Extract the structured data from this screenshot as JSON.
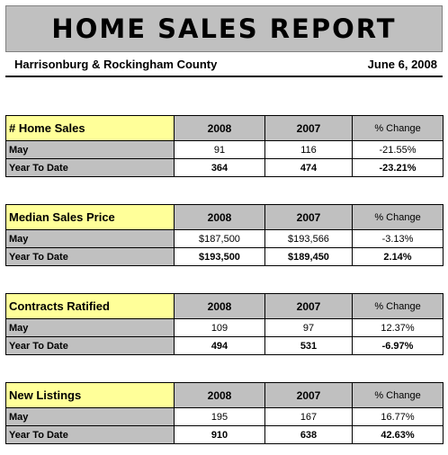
{
  "header": {
    "title": "HOME SALES REPORT",
    "region": "Harrisonburg & Rockingham County",
    "date": "June 6, 2008"
  },
  "columns": {
    "year1": "2008",
    "year2": "2007",
    "change": "% Change"
  },
  "sections": [
    {
      "title": "# Home Sales",
      "rows": [
        {
          "label": "May",
          "v2008": "91",
          "v2007": "116",
          "change": "-21.55%"
        },
        {
          "label": "Year To Date",
          "v2008": "364",
          "v2007": "474",
          "change": "-23.21%"
        }
      ]
    },
    {
      "title": "Median Sales Price",
      "rows": [
        {
          "label": "May",
          "v2008": "$187,500",
          "v2007": "$193,566",
          "change": "-3.13%"
        },
        {
          "label": "Year To Date",
          "v2008": "$193,500",
          "v2007": "$189,450",
          "change": "2.14%"
        }
      ]
    },
    {
      "title": "Contracts Ratified",
      "rows": [
        {
          "label": "May",
          "v2008": "109",
          "v2007": "97",
          "change": "12.37%"
        },
        {
          "label": "Year To Date",
          "v2008": "494",
          "v2007": "531",
          "change": "-6.97%"
        }
      ]
    },
    {
      "title": "New Listings",
      "rows": [
        {
          "label": "May",
          "v2008": "195",
          "v2007": "167",
          "change": "16.77%"
        },
        {
          "label": "Year To Date",
          "v2008": "910",
          "v2007": "638",
          "change": "42.63%"
        }
      ]
    }
  ]
}
